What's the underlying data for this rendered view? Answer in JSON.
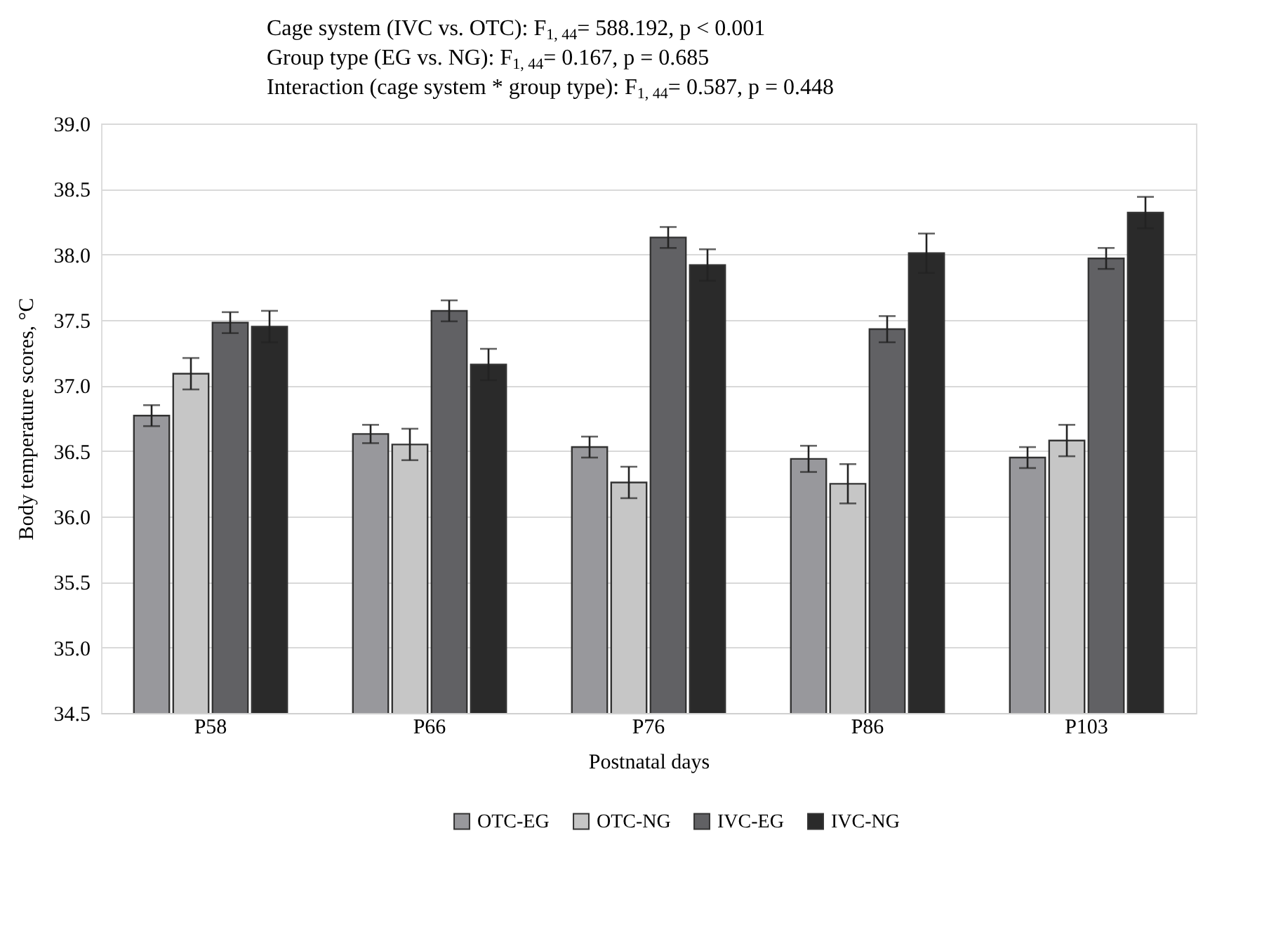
{
  "chart_data": {
    "type": "bar",
    "annotations": [
      "Cage system (IVC vs. OTC): F$_{1, 44}$= 588.192, p < 0.001",
      "Group type (EG vs. NG): F$_{1, 44}$= 0.167, p = 0.685",
      "Interaction (cage system * group type): F$_{1, 44}$= 0.587, p = 0.448"
    ],
    "xlabel": "Postnatal days",
    "ylabel": "Body temperature scores, °C",
    "categories": [
      "P58",
      "P66",
      "P76",
      "P86",
      "P103"
    ],
    "series": [
      {
        "name": "OTC-EG",
        "color": "#98989c",
        "values": [
          36.77,
          36.63,
          36.53,
          36.44,
          36.45
        ],
        "errors": [
          0.08,
          0.07,
          0.08,
          0.1,
          0.08
        ]
      },
      {
        "name": "OTC-NG",
        "color": "#c6c6c6",
        "values": [
          37.09,
          36.55,
          36.26,
          36.25,
          36.58
        ],
        "errors": [
          0.12,
          0.12,
          0.12,
          0.15,
          0.12
        ]
      },
      {
        "name": "IVC-EG",
        "color": "#616164",
        "values": [
          37.48,
          37.57,
          38.13,
          37.43,
          37.97
        ],
        "errors": [
          0.08,
          0.08,
          0.08,
          0.1,
          0.08
        ]
      },
      {
        "name": "IVC-NG",
        "color": "#2a2a2a",
        "values": [
          37.45,
          37.16,
          37.92,
          38.01,
          38.32
        ],
        "errors": [
          0.12,
          0.12,
          0.12,
          0.15,
          0.12
        ]
      }
    ],
    "ylim": [
      34.5,
      39.0
    ],
    "yticks": [
      {
        "value": 34.5,
        "label": "34.5"
      },
      {
        "value": 35,
        "label": "35.0"
      },
      {
        "value": 35.5,
        "label": "35.5"
      },
      {
        "value": 36,
        "label": "36.0"
      },
      {
        "value": 36.5,
        "label": "36.5"
      },
      {
        "value": 37,
        "label": "37.0"
      },
      {
        "value": 37.5,
        "label": "37.5"
      },
      {
        "value": 38,
        "label": "38.0"
      },
      {
        "value": 38.5,
        "label": "38.5"
      },
      {
        "value": 39,
        "label": "39.0"
      }
    ],
    "grid": "y",
    "legend": "bottom"
  }
}
